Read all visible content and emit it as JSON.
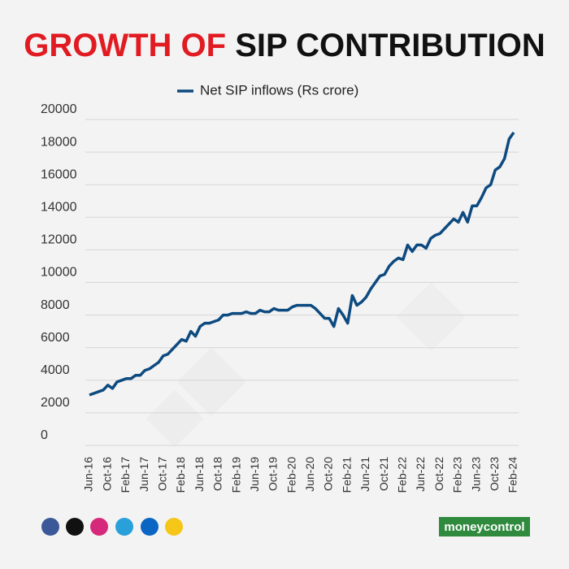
{
  "chart_data": {
    "type": "line",
    "title": [
      "GROWTH OF",
      "SIP CONTRIBUTION"
    ],
    "title_colors": [
      "#e11b22",
      "#111111"
    ],
    "categories": [
      "Jun-16",
      null,
      null,
      null,
      "Oct-16",
      null,
      null,
      null,
      "Feb-17",
      null,
      null,
      null,
      "Jun-17",
      null,
      null,
      null,
      "Oct-17",
      null,
      null,
      null,
      "Feb-18",
      null,
      null,
      null,
      "Jun-18",
      null,
      null,
      null,
      "Oct-18",
      null,
      null,
      null,
      "Feb-19",
      null,
      null,
      null,
      "Jun-19",
      null,
      null,
      null,
      "Oct-19",
      null,
      null,
      null,
      "Feb-20",
      null,
      null,
      null,
      "Jun-20",
      null,
      null,
      null,
      "Oct-20",
      null,
      null,
      null,
      "Feb-21",
      null,
      null,
      null,
      "Jun-21",
      null,
      null,
      null,
      "Oct-21",
      null,
      null,
      null,
      "Feb-22",
      null,
      null,
      null,
      "Jun-22",
      null,
      null,
      null,
      "Oct-22",
      null,
      null,
      null,
      "Feb-23",
      null,
      null,
      null,
      "Jun-23",
      null,
      null,
      null,
      "Oct-23",
      null,
      null,
      null,
      "Feb-24"
    ],
    "series": [
      {
        "name": "Net SIP inflows (Rs crore)",
        "color": "#0d4a80",
        "values": [
          3100,
          3200,
          3300,
          3400,
          3700,
          3500,
          3900,
          4000,
          4100,
          4100,
          4300,
          4300,
          4600,
          4700,
          4900,
          5100,
          5500,
          5600,
          5900,
          6200,
          6500,
          6400,
          7000,
          6700,
          7300,
          7500,
          7500,
          7600,
          7700,
          8000,
          8000,
          8100,
          8100,
          8100,
          8200,
          8100,
          8100,
          8300,
          8200,
          8200,
          8400,
          8300,
          8300,
          8300,
          8500,
          8600,
          8600,
          8600,
          8600,
          8400,
          8100,
          7800,
          7800,
          7300,
          8400,
          8000,
          7500,
          9200,
          8600,
          8800,
          9100,
          9600,
          10000,
          10400,
          10500,
          11000,
          11300,
          11500,
          11400,
          12300,
          11900,
          12300,
          12300,
          12100,
          12700,
          12900,
          13000,
          13300,
          13600,
          13900,
          13700,
          14300,
          13700,
          14700,
          14700,
          15200,
          15800,
          16000,
          16900,
          17100,
          17600,
          18800,
          19200
        ]
      }
    ],
    "ylim": [
      0,
      20000
    ],
    "yticks": [
      0,
      2000,
      4000,
      6000,
      8000,
      10000,
      12000,
      14000,
      16000,
      18000,
      20000
    ],
    "grid": true,
    "legend": "top",
    "brand": "moneycontrol"
  }
}
